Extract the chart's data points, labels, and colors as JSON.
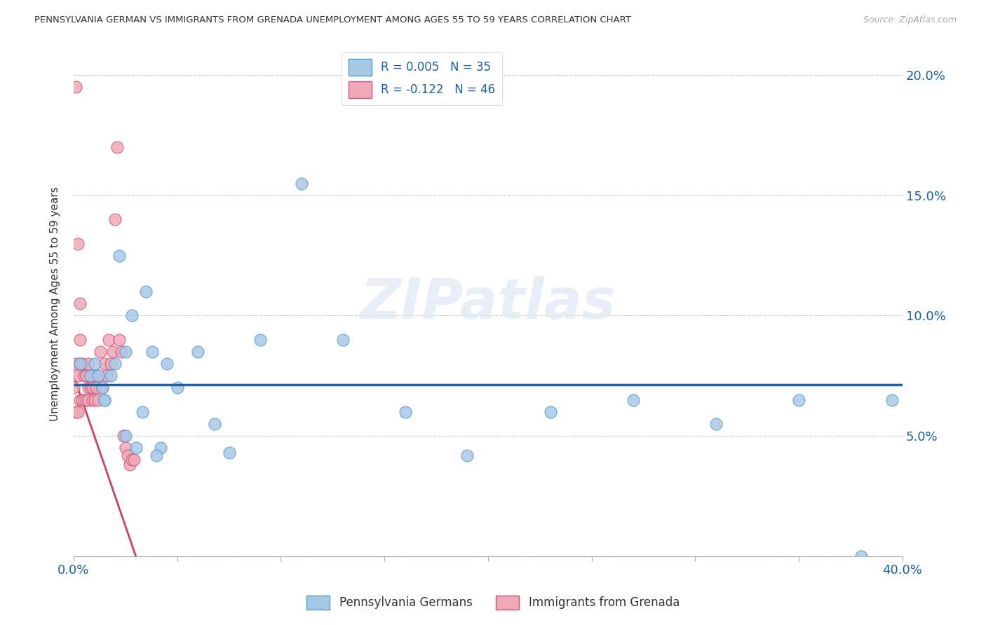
{
  "title": "PENNSYLVANIA GERMAN VS IMMIGRANTS FROM GRENADA UNEMPLOYMENT AMONG AGES 55 TO 59 YEARS CORRELATION CHART",
  "source": "Source: ZipAtlas.com",
  "ylabel": "Unemployment Among Ages 55 to 59 years",
  "ytick_labels": [
    "",
    "5.0%",
    "10.0%",
    "15.0%",
    "20.0%"
  ],
  "ytick_values": [
    0.0,
    0.05,
    0.1,
    0.15,
    0.2
  ],
  "xlim": [
    0.0,
    0.4
  ],
  "ylim": [
    0.0,
    0.21
  ],
  "legend_blue_label": "R = 0.005   N = 35",
  "legend_pink_label": "R = -0.122   N = 46",
  "series_blue_label": "Pennsylvania Germans",
  "series_pink_label": "Immigrants from Grenada",
  "blue_color": "#a8c8e8",
  "pink_color": "#f0a8b8",
  "trendline_blue_color": "#1a5fa8",
  "trendline_pink_color": "#d04060",
  "watermark": "ZIPatlas",
  "blue_scatter_x": [
    0.003,
    0.008,
    0.01,
    0.012,
    0.014,
    0.015,
    0.018,
    0.02,
    0.022,
    0.025,
    0.028,
    0.03,
    0.033,
    0.035,
    0.038,
    0.042,
    0.045,
    0.05,
    0.06,
    0.068,
    0.075,
    0.09,
    0.11,
    0.13,
    0.16,
    0.19,
    0.23,
    0.27,
    0.31,
    0.35,
    0.38,
    0.395,
    0.015,
    0.025,
    0.04
  ],
  "blue_scatter_y": [
    0.08,
    0.075,
    0.08,
    0.075,
    0.07,
    0.065,
    0.075,
    0.08,
    0.125,
    0.085,
    0.1,
    0.045,
    0.06,
    0.11,
    0.085,
    0.045,
    0.08,
    0.07,
    0.085,
    0.055,
    0.043,
    0.09,
    0.155,
    0.09,
    0.06,
    0.042,
    0.06,
    0.065,
    0.055,
    0.065,
    0.0,
    0.065,
    0.065,
    0.05,
    0.042
  ],
  "pink_scatter_x": [
    0.0,
    0.001,
    0.001,
    0.002,
    0.002,
    0.003,
    0.003,
    0.003,
    0.004,
    0.004,
    0.005,
    0.005,
    0.006,
    0.006,
    0.007,
    0.007,
    0.007,
    0.008,
    0.008,
    0.009,
    0.009,
    0.01,
    0.01,
    0.011,
    0.012,
    0.012,
    0.013,
    0.014,
    0.015,
    0.016,
    0.017,
    0.018,
    0.019,
    0.02,
    0.021,
    0.022,
    0.023,
    0.024,
    0.025,
    0.026,
    0.027,
    0.028,
    0.029,
    0.001,
    0.002,
    0.003
  ],
  "pink_scatter_y": [
    0.07,
    0.06,
    0.08,
    0.06,
    0.075,
    0.065,
    0.08,
    0.09,
    0.065,
    0.08,
    0.065,
    0.075,
    0.065,
    0.075,
    0.07,
    0.065,
    0.08,
    0.07,
    0.075,
    0.065,
    0.07,
    0.065,
    0.075,
    0.07,
    0.065,
    0.075,
    0.085,
    0.07,
    0.08,
    0.075,
    0.09,
    0.08,
    0.085,
    0.14,
    0.17,
    0.09,
    0.085,
    0.05,
    0.045,
    0.042,
    0.038,
    0.04,
    0.04,
    0.195,
    0.13,
    0.105
  ]
}
